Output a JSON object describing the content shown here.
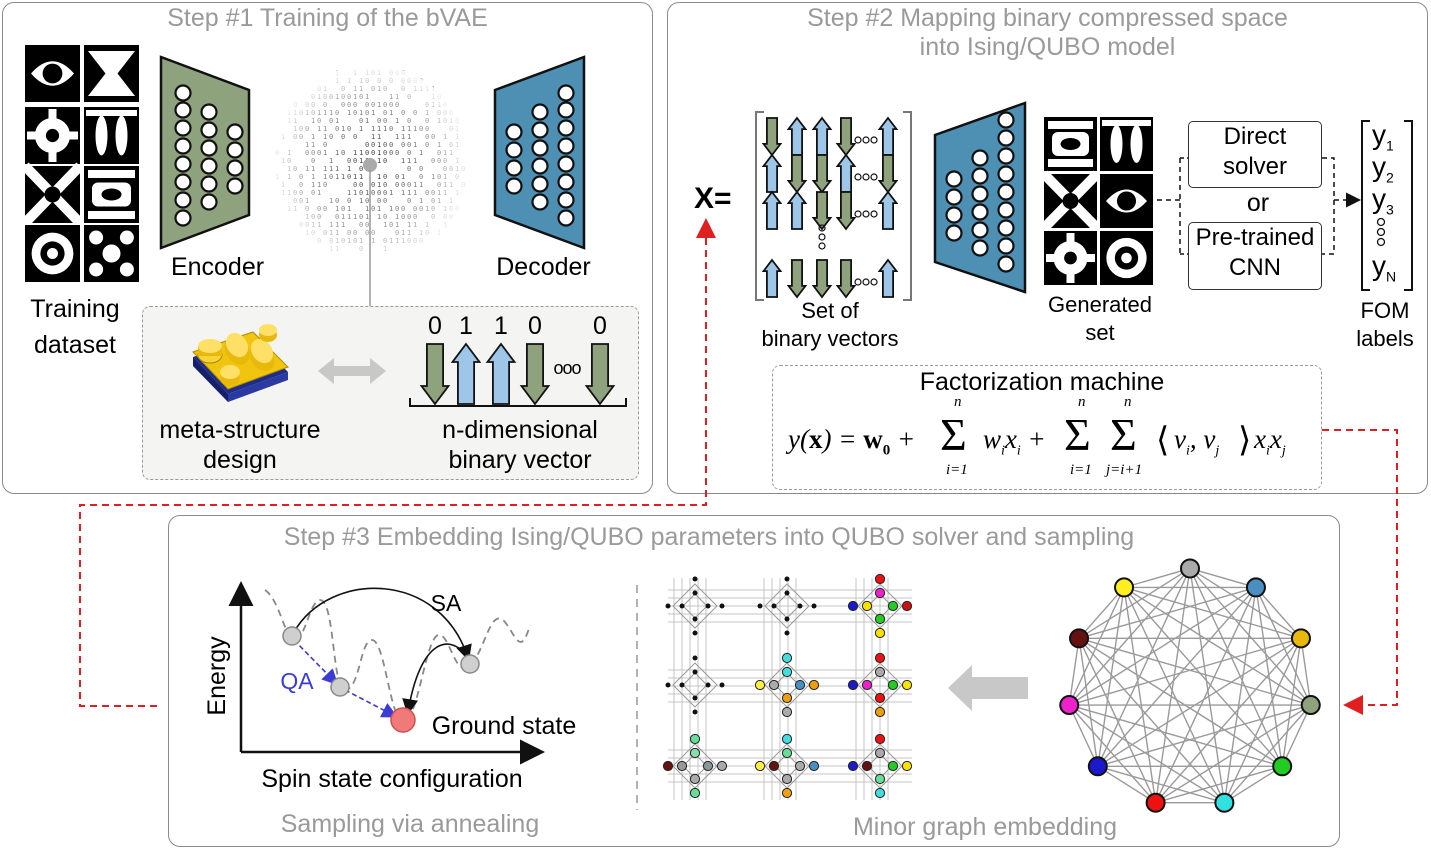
{
  "step1": {
    "title": "Step #1 Training of the bVAE",
    "training_dataset": [
      "Training",
      "dataset"
    ],
    "encoder_label": "Encoder",
    "decoder_label": "Decoder",
    "meta_structure": [
      "meta-structure",
      "design"
    ],
    "binary_vector_label": [
      "n-dimensional",
      "binary vector"
    ],
    "binary_digits": [
      "0",
      "1",
      "1",
      "0",
      "0"
    ],
    "ellipsis": "ooo"
  },
  "step2": {
    "title_line1": "Step #2 Mapping binary compressed space",
    "title_line2": "into Ising/QUBO model",
    "x_label": "X=",
    "set_of_binary_vectors": [
      "Set of",
      "binary vectors"
    ],
    "generated_set": [
      "Generated",
      "set"
    ],
    "direct_solver": [
      "Direct",
      "solver"
    ],
    "or_label": "or",
    "pretrained_cnn": [
      "Pre-trained",
      "CNN"
    ],
    "fom_labels": [
      "FOM",
      "labels"
    ],
    "y_labels": [
      "y1",
      "y2",
      "y3",
      "yN"
    ],
    "factorization_machine": "Factorization machine",
    "equation": "y(x) = w0 + Σ_{i=1}^{n} w_i x_i + Σ_{i=1}^{n} Σ_{j=i+1}^{n} ⟨v_i, v_j⟩ x_i x_j"
  },
  "step3": {
    "title": "Step #3 Embedding Ising/QUBO parameters into QUBO solver and sampling",
    "energy_axis": "Energy",
    "spin_axis": "Spin state configuration",
    "sa_label": "SA",
    "qa_label": "QA",
    "ground_state": "Ground state",
    "sampling_caption": "Sampling via annealing",
    "embedding_caption": "Minor graph embedding"
  },
  "colors": {
    "encoder": "#8fa27e",
    "decoder": "#4e8fb4",
    "up_arrow": "#9dc6e8",
    "down_arrow": "#8fa27e",
    "dashed_red": "#e02020",
    "qa_blue": "#3b3bd6",
    "ground_state": "#f07a7a",
    "panel_border": "#8a8a8a",
    "title_gray": "#9a9a9a"
  }
}
